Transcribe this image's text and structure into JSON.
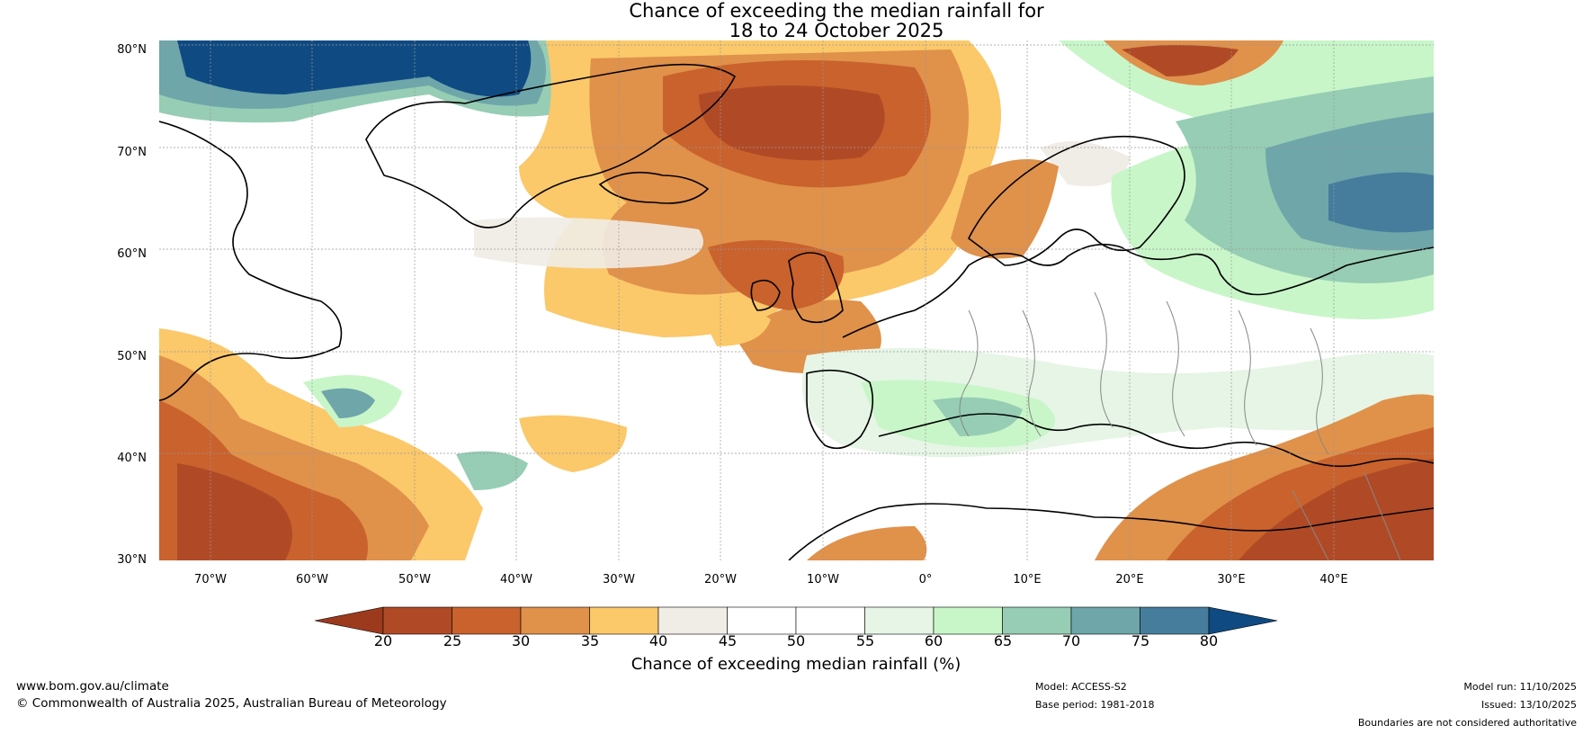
{
  "title_line1": "Chance of exceeding the median rainfall for",
  "title_line2": "18 to 24 October 2025",
  "lat_labels": [
    "80°N",
    "70°N",
    "60°N",
    "50°N",
    "40°N",
    "30°N"
  ],
  "lon_labels": [
    "70°W",
    "60°W",
    "50°W",
    "40°W",
    "30°W",
    "20°W",
    "10°W",
    "0°",
    "10°E",
    "20°E",
    "30°E",
    "40°E"
  ],
  "colorbar": {
    "ticks": [
      "20",
      "25",
      "30",
      "35",
      "40",
      "45",
      "50",
      "55",
      "60",
      "65",
      "70",
      "75",
      "80"
    ],
    "label": "Chance of exceeding median rainfall (%)",
    "colors": [
      "#9c3a1e",
      "#b04a26",
      "#c9622d",
      "#e0914a",
      "#fbc86a",
      "#f0ece6",
      "#ffffff",
      "#ffffff",
      "#e6f5e6",
      "#c8f6c8",
      "#96cdb4",
      "#6ea6aa",
      "#467d9c",
      "#0f4b82"
    ]
  },
  "footer": {
    "website": "www.bom.gov.au/climate",
    "copyright": "© Commonwealth of Australia 2025, Australian Bureau of Meteorology",
    "model": "Model: ACCESS-S2",
    "base_period": "Base period: 1981-2018",
    "model_run": "Model run: 11/10/2025",
    "issued": "Issued: 13/10/2025",
    "disclaimer": "Boundaries are not considered authoritative"
  }
}
